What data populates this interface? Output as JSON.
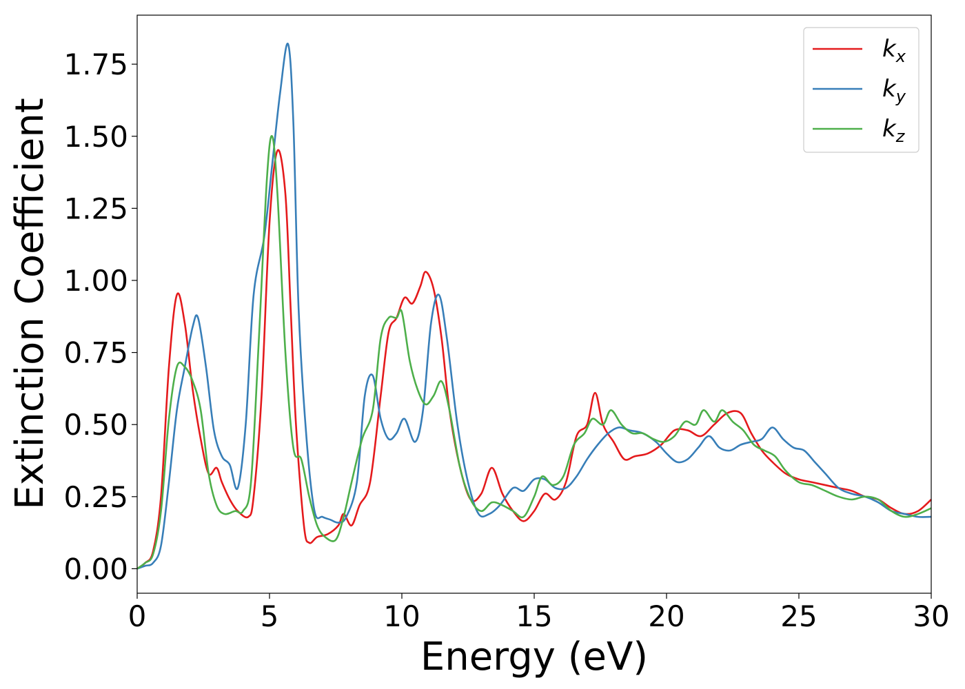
{
  "chart_data": {
    "type": "line",
    "title": "",
    "xlabel": "Energy (eV)",
    "ylabel": "Extinction Coefficient",
    "xlim": [
      0,
      30
    ],
    "ylim": [
      -0.085,
      1.92
    ],
    "xticks": [
      0,
      5,
      10,
      15,
      20,
      25,
      30
    ],
    "xtick_labels": [
      "0",
      "5",
      "10",
      "15",
      "20",
      "25",
      "30"
    ],
    "yticks": [
      0,
      0.25,
      0.5,
      0.75,
      1.0,
      1.25,
      1.5,
      1.75
    ],
    "ytick_labels": [
      "0.00",
      "0.25",
      "0.50",
      "0.75",
      "1.00",
      "1.25",
      "1.50",
      "1.75"
    ],
    "grid": false,
    "legend_position": "top-right",
    "series": [
      {
        "name": "k",
        "subscript": "x",
        "color": "#e41a1c",
        "points": [
          [
            0,
            0
          ],
          [
            0.3,
            0.02
          ],
          [
            0.6,
            0.06
          ],
          [
            0.9,
            0.25
          ],
          [
            1.2,
            0.7
          ],
          [
            1.5,
            0.95
          ],
          [
            1.8,
            0.85
          ],
          [
            2.1,
            0.62
          ],
          [
            2.4,
            0.45
          ],
          [
            2.7,
            0.33
          ],
          [
            3.0,
            0.35
          ],
          [
            3.2,
            0.3
          ],
          [
            3.5,
            0.24
          ],
          [
            3.8,
            0.2
          ],
          [
            4.2,
            0.18
          ],
          [
            4.4,
            0.25
          ],
          [
            4.7,
            0.6
          ],
          [
            5.0,
            1.2
          ],
          [
            5.3,
            1.45
          ],
          [
            5.6,
            1.3
          ],
          [
            5.8,
            0.9
          ],
          [
            6.0,
            0.5
          ],
          [
            6.3,
            0.15
          ],
          [
            6.5,
            0.09
          ],
          [
            6.8,
            0.11
          ],
          [
            7.2,
            0.12
          ],
          [
            7.6,
            0.15
          ],
          [
            7.8,
            0.19
          ],
          [
            8.1,
            0.15
          ],
          [
            8.4,
            0.22
          ],
          [
            8.8,
            0.3
          ],
          [
            9.2,
            0.6
          ],
          [
            9.5,
            0.82
          ],
          [
            9.8,
            0.87
          ],
          [
            10.1,
            0.94
          ],
          [
            10.4,
            0.92
          ],
          [
            10.7,
            0.98
          ],
          [
            10.9,
            1.03
          ],
          [
            11.2,
            0.97
          ],
          [
            11.5,
            0.8
          ],
          [
            11.8,
            0.55
          ],
          [
            12.2,
            0.35
          ],
          [
            12.6,
            0.24
          ],
          [
            13.0,
            0.26
          ],
          [
            13.4,
            0.35
          ],
          [
            13.8,
            0.26
          ],
          [
            14.2,
            0.2
          ],
          [
            14.6,
            0.165
          ],
          [
            15.0,
            0.2
          ],
          [
            15.4,
            0.26
          ],
          [
            15.8,
            0.24
          ],
          [
            16.2,
            0.3
          ],
          [
            16.6,
            0.46
          ],
          [
            17.0,
            0.5
          ],
          [
            17.3,
            0.61
          ],
          [
            17.6,
            0.5
          ],
          [
            18.0,
            0.44
          ],
          [
            18.4,
            0.38
          ],
          [
            18.8,
            0.39
          ],
          [
            19.3,
            0.4
          ],
          [
            19.8,
            0.43
          ],
          [
            20.3,
            0.48
          ],
          [
            20.8,
            0.48
          ],
          [
            21.3,
            0.46
          ],
          [
            21.8,
            0.5
          ],
          [
            22.3,
            0.54
          ],
          [
            22.8,
            0.54
          ],
          [
            23.2,
            0.47
          ],
          [
            23.6,
            0.41
          ],
          [
            24.0,
            0.37
          ],
          [
            24.5,
            0.33
          ],
          [
            25.0,
            0.31
          ],
          [
            25.5,
            0.3
          ],
          [
            26.0,
            0.29
          ],
          [
            26.5,
            0.28
          ],
          [
            27.0,
            0.27
          ],
          [
            27.5,
            0.25
          ],
          [
            28.0,
            0.24
          ],
          [
            28.5,
            0.21
          ],
          [
            29.0,
            0.19
          ],
          [
            29.5,
            0.2
          ],
          [
            30.0,
            0.24
          ]
        ]
      },
      {
        "name": "k",
        "subscript": "y",
        "color": "#377eb8",
        "points": [
          [
            0,
            0
          ],
          [
            0.3,
            0.01
          ],
          [
            0.6,
            0.02
          ],
          [
            0.9,
            0.08
          ],
          [
            1.2,
            0.3
          ],
          [
            1.5,
            0.55
          ],
          [
            1.8,
            0.7
          ],
          [
            2.1,
            0.84
          ],
          [
            2.3,
            0.87
          ],
          [
            2.6,
            0.7
          ],
          [
            2.9,
            0.48
          ],
          [
            3.2,
            0.39
          ],
          [
            3.5,
            0.36
          ],
          [
            3.8,
            0.28
          ],
          [
            4.1,
            0.5
          ],
          [
            4.4,
            0.95
          ],
          [
            4.8,
            1.15
          ],
          [
            5.1,
            1.4
          ],
          [
            5.4,
            1.65
          ],
          [
            5.7,
            1.82
          ],
          [
            5.9,
            1.55
          ],
          [
            6.1,
            0.9
          ],
          [
            6.4,
            0.45
          ],
          [
            6.7,
            0.2
          ],
          [
            7.0,
            0.18
          ],
          [
            7.3,
            0.17
          ],
          [
            7.6,
            0.16
          ],
          [
            7.9,
            0.18
          ],
          [
            8.3,
            0.3
          ],
          [
            8.6,
            0.6
          ],
          [
            8.9,
            0.67
          ],
          [
            9.2,
            0.52
          ],
          [
            9.5,
            0.45
          ],
          [
            9.8,
            0.47
          ],
          [
            10.1,
            0.52
          ],
          [
            10.5,
            0.44
          ],
          [
            10.8,
            0.55
          ],
          [
            11.1,
            0.85
          ],
          [
            11.4,
            0.95
          ],
          [
            11.7,
            0.8
          ],
          [
            12.1,
            0.5
          ],
          [
            12.5,
            0.3
          ],
          [
            12.9,
            0.19
          ],
          [
            13.3,
            0.19
          ],
          [
            13.7,
            0.22
          ],
          [
            14.2,
            0.28
          ],
          [
            14.6,
            0.27
          ],
          [
            15.0,
            0.31
          ],
          [
            15.4,
            0.31
          ],
          [
            15.8,
            0.28
          ],
          [
            16.2,
            0.28
          ],
          [
            16.6,
            0.32
          ],
          [
            17.0,
            0.38
          ],
          [
            17.4,
            0.43
          ],
          [
            17.8,
            0.47
          ],
          [
            18.2,
            0.49
          ],
          [
            18.6,
            0.48
          ],
          [
            19.1,
            0.47
          ],
          [
            19.6,
            0.44
          ],
          [
            20.0,
            0.4
          ],
          [
            20.4,
            0.37
          ],
          [
            20.8,
            0.38
          ],
          [
            21.2,
            0.42
          ],
          [
            21.6,
            0.46
          ],
          [
            22.0,
            0.42
          ],
          [
            22.4,
            0.41
          ],
          [
            22.8,
            0.43
          ],
          [
            23.2,
            0.44
          ],
          [
            23.6,
            0.45
          ],
          [
            24.0,
            0.49
          ],
          [
            24.4,
            0.45
          ],
          [
            24.8,
            0.42
          ],
          [
            25.2,
            0.41
          ],
          [
            25.6,
            0.37
          ],
          [
            26.0,
            0.33
          ],
          [
            26.5,
            0.28
          ],
          [
            27.0,
            0.26
          ],
          [
            27.5,
            0.25
          ],
          [
            28.0,
            0.23
          ],
          [
            28.5,
            0.2
          ],
          [
            29.0,
            0.19
          ],
          [
            29.5,
            0.18
          ],
          [
            30.0,
            0.18
          ]
        ]
      },
      {
        "name": "k",
        "subscript": "z",
        "color": "#4daf4a",
        "points": [
          [
            0,
            0
          ],
          [
            0.3,
            0.02
          ],
          [
            0.6,
            0.05
          ],
          [
            0.9,
            0.2
          ],
          [
            1.2,
            0.52
          ],
          [
            1.5,
            0.7
          ],
          [
            1.8,
            0.7
          ],
          [
            2.1,
            0.65
          ],
          [
            2.4,
            0.55
          ],
          [
            2.7,
            0.33
          ],
          [
            3.0,
            0.22
          ],
          [
            3.3,
            0.19
          ],
          [
            3.7,
            0.2
          ],
          [
            4.0,
            0.2
          ],
          [
            4.3,
            0.3
          ],
          [
            4.6,
            0.8
          ],
          [
            4.9,
            1.35
          ],
          [
            5.1,
            1.5
          ],
          [
            5.3,
            1.3
          ],
          [
            5.6,
            0.75
          ],
          [
            5.9,
            0.42
          ],
          [
            6.2,
            0.38
          ],
          [
            6.5,
            0.25
          ],
          [
            6.8,
            0.15
          ],
          [
            7.1,
            0.11
          ],
          [
            7.5,
            0.1
          ],
          [
            7.8,
            0.18
          ],
          [
            8.1,
            0.3
          ],
          [
            8.5,
            0.45
          ],
          [
            8.9,
            0.55
          ],
          [
            9.2,
            0.8
          ],
          [
            9.5,
            0.87
          ],
          [
            9.8,
            0.87
          ],
          [
            10.0,
            0.89
          ],
          [
            10.3,
            0.72
          ],
          [
            10.6,
            0.62
          ],
          [
            10.9,
            0.57
          ],
          [
            11.2,
            0.6
          ],
          [
            11.5,
            0.65
          ],
          [
            11.8,
            0.55
          ],
          [
            12.2,
            0.35
          ],
          [
            12.6,
            0.24
          ],
          [
            13.0,
            0.2
          ],
          [
            13.4,
            0.23
          ],
          [
            13.8,
            0.22
          ],
          [
            14.2,
            0.2
          ],
          [
            14.6,
            0.18
          ],
          [
            15.0,
            0.25
          ],
          [
            15.3,
            0.32
          ],
          [
            15.7,
            0.29
          ],
          [
            16.1,
            0.32
          ],
          [
            16.5,
            0.43
          ],
          [
            16.9,
            0.47
          ],
          [
            17.2,
            0.52
          ],
          [
            17.6,
            0.5
          ],
          [
            17.9,
            0.55
          ],
          [
            18.3,
            0.5
          ],
          [
            18.7,
            0.47
          ],
          [
            19.1,
            0.47
          ],
          [
            19.5,
            0.45
          ],
          [
            19.9,
            0.44
          ],
          [
            20.3,
            0.46
          ],
          [
            20.7,
            0.51
          ],
          [
            21.1,
            0.5
          ],
          [
            21.4,
            0.55
          ],
          [
            21.8,
            0.51
          ],
          [
            22.1,
            0.55
          ],
          [
            22.5,
            0.51
          ],
          [
            22.9,
            0.48
          ],
          [
            23.3,
            0.43
          ],
          [
            23.7,
            0.41
          ],
          [
            24.1,
            0.39
          ],
          [
            24.5,
            0.34
          ],
          [
            25.0,
            0.3
          ],
          [
            25.5,
            0.29
          ],
          [
            26.0,
            0.27
          ],
          [
            26.5,
            0.25
          ],
          [
            27.0,
            0.24
          ],
          [
            27.5,
            0.25
          ],
          [
            28.0,
            0.24
          ],
          [
            28.5,
            0.2
          ],
          [
            29.0,
            0.18
          ],
          [
            29.5,
            0.19
          ],
          [
            30.0,
            0.21
          ]
        ]
      }
    ]
  }
}
